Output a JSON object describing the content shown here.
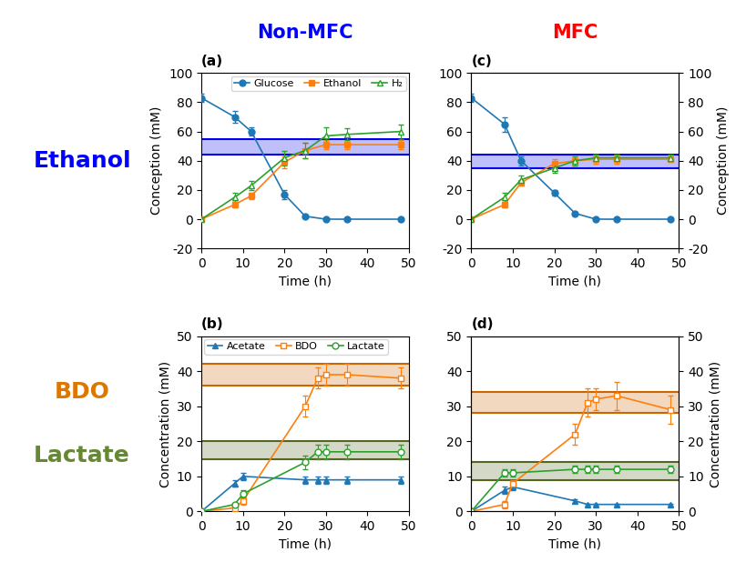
{
  "chart_data": [
    {
      "type": "line",
      "title": "(a)",
      "x_label": "Time (h)",
      "y_label": "Conception (mM)",
      "x": [
        0,
        8,
        12,
        20,
        25,
        30,
        35,
        48
      ],
      "series": [
        {
          "name": "Glucose",
          "marker": "circle",
          "values": [
            83,
            70,
            60,
            17,
            2,
            0,
            0,
            0
          ],
          "errors": [
            3,
            4,
            3,
            3,
            1,
            0.3,
            0.3,
            0.3
          ]
        },
        {
          "name": "Ethanol",
          "marker": "square",
          "values": [
            0,
            10,
            16,
            39,
            47,
            51,
            51,
            51
          ],
          "errors": [
            0,
            2,
            2,
            4,
            5,
            3,
            3,
            3
          ]
        },
        {
          "name": "H₂",
          "marker": "open_triangle",
          "values": [
            0,
            15,
            23,
            42,
            47,
            57,
            58,
            60
          ],
          "errors": [
            0,
            3,
            3,
            5,
            5,
            6,
            4,
            5
          ]
        }
      ],
      "bands": [
        {
          "lower": 44,
          "upper": 55,
          "color": "#0000ee"
        }
      ],
      "xlim": [
        0,
        50
      ],
      "xticks": [
        0,
        10,
        20,
        30,
        40,
        50
      ],
      "ylim": [
        -20,
        100
      ],
      "yticks": [
        -20,
        0,
        20,
        40,
        60,
        80,
        100
      ],
      "legend": "upper right"
    },
    {
      "type": "line",
      "title": "(b)",
      "x_label": "Time (h)",
      "y_label": "Concentration (mM)",
      "x": [
        0,
        8,
        10,
        25,
        28,
        30,
        35,
        48
      ],
      "series": [
        {
          "name": "Acetate",
          "marker": "triangle",
          "values": [
            0,
            8,
            10,
            9,
            9,
            9,
            9,
            9
          ],
          "errors": [
            0,
            1,
            1,
            1,
            1,
            1,
            1,
            1
          ]
        },
        {
          "name": "BDO",
          "marker": "open_square",
          "values": [
            0,
            1,
            3,
            30,
            38,
            39,
            39,
            38
          ],
          "errors": [
            0,
            0.5,
            1,
            3,
            3,
            3,
            3,
            3
          ]
        },
        {
          "name": "Lactate",
          "marker": "open_circle",
          "values": [
            0,
            2,
            5,
            14,
            17,
            17,
            17,
            17
          ],
          "errors": [
            0,
            0.5,
            1,
            2,
            2,
            2,
            2,
            2
          ]
        }
      ],
      "bands": [
        {
          "lower": 36,
          "upper": 42,
          "color": "#cc6600"
        },
        {
          "lower": 15,
          "upper": 20,
          "color": "#556622"
        }
      ],
      "xlim": [
        0,
        50
      ],
      "xticks": [
        0,
        10,
        20,
        30,
        40,
        50
      ],
      "ylim": [
        0,
        50
      ],
      "yticks": [
        0,
        10,
        20,
        30,
        40,
        50
      ],
      "legend": "upper left"
    },
    {
      "type": "line",
      "title": "(c)",
      "x_label": "Time (h)",
      "y2_label": "Conception (mM)",
      "x": [
        0,
        8,
        12,
        20,
        25,
        30,
        35,
        48
      ],
      "series": [
        {
          "name": "Glucose",
          "marker": "circle",
          "values": [
            83,
            65,
            40,
            18,
            4,
            0,
            0,
            0
          ],
          "errors": [
            3,
            5,
            3,
            2,
            1,
            0.3,
            0.3,
            0.3
          ]
        },
        {
          "name": "Ethanol",
          "marker": "square",
          "values": [
            0,
            10,
            25,
            38,
            40,
            41,
            41,
            41
          ],
          "errors": [
            0,
            2,
            2,
            3,
            3,
            3,
            3,
            2
          ]
        },
        {
          "name": "H₂",
          "marker": "open_triangle",
          "values": [
            0,
            15,
            27,
            35,
            40,
            42,
            42,
            42
          ],
          "errors": [
            0,
            3,
            3,
            3,
            3,
            2,
            2,
            2
          ]
        }
      ],
      "bands": [
        {
          "lower": 35,
          "upper": 44,
          "color": "#0000ee"
        }
      ],
      "xlim": [
        0,
        50
      ],
      "xticks": [
        0,
        10,
        20,
        30,
        40,
        50
      ],
      "ylim": [
        -20,
        100
      ],
      "yticks": [
        -20,
        0,
        20,
        40,
        60,
        80,
        100
      ],
      "y2lim": [
        -20,
        100
      ],
      "y2ticks": [
        -20,
        0,
        20,
        40,
        60,
        80,
        100
      ],
      "legend": false
    },
    {
      "type": "line",
      "title": "(d)",
      "x_label": "Time (h)",
      "y2_label": "Concentration (mM)",
      "x": [
        0,
        8,
        10,
        25,
        28,
        30,
        35,
        48
      ],
      "series": [
        {
          "name": "Acetate",
          "marker": "triangle",
          "values": [
            0,
            6,
            7,
            3,
            2,
            2,
            2,
            2
          ],
          "errors": [
            0,
            1,
            1,
            0.5,
            0.3,
            0.3,
            0.3,
            0.3
          ]
        },
        {
          "name": "BDO",
          "marker": "open_square",
          "values": [
            0,
            2,
            8,
            22,
            31,
            32,
            33,
            29
          ],
          "errors": [
            0,
            1,
            1,
            3,
            4,
            3,
            4,
            4
          ]
        },
        {
          "name": "Lactate",
          "marker": "open_circle",
          "values": [
            0,
            11,
            11,
            12,
            12,
            12,
            12,
            12
          ],
          "errors": [
            0,
            1,
            1,
            1,
            1,
            1,
            1,
            1
          ]
        }
      ],
      "bands": [
        {
          "lower": 28,
          "upper": 34,
          "color": "#cc6600"
        },
        {
          "lower": 9,
          "upper": 14,
          "color": "#556622"
        }
      ],
      "xlim": [
        0,
        50
      ],
      "xticks": [
        0,
        10,
        20,
        30,
        40,
        50
      ],
      "ylim": [
        0,
        50
      ],
      "yticks": [
        0,
        10,
        20,
        30,
        40,
        50
      ],
      "y2lim": [
        0,
        50
      ],
      "y2ticks": [
        0,
        10,
        20,
        30,
        40,
        50
      ],
      "legend": false
    }
  ],
  "annotations": [
    {
      "text": "Non-MFC",
      "color": "#0000ff"
    },
    {
      "text": "MFC",
      "color": "#ff0000"
    },
    {
      "text": "Ethanol",
      "color": "#0000ff"
    },
    {
      "text": "BDO",
      "color": "#dd7700"
    },
    {
      "text": "Lactate",
      "color": "#668833"
    }
  ]
}
